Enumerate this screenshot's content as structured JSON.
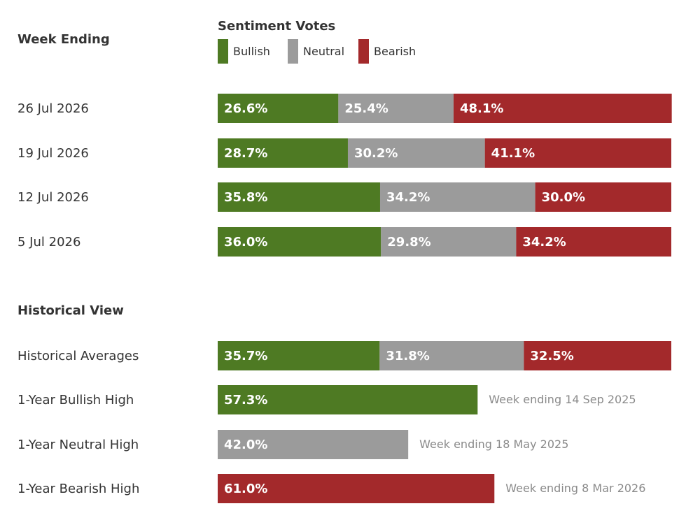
{
  "chart_data": {
    "type": "bar",
    "orientation": "horizontal",
    "stacked": true,
    "xlim": [
      0,
      100
    ],
    "unit": "%",
    "headers": {
      "left": "Week Ending",
      "legend_title": "Sentiment Votes",
      "historical": "Historical View"
    },
    "series": [
      {
        "name": "Bullish",
        "color": "#4e7a23"
      },
      {
        "name": "Neutral",
        "color": "#9b9b9b"
      },
      {
        "name": "Bearish",
        "color": "#a3292b"
      }
    ],
    "weekly": [
      {
        "label": "26 Jul 2026",
        "values": [
          26.6,
          25.4,
          48.1
        ]
      },
      {
        "label": "19 Jul 2026",
        "values": [
          28.7,
          30.2,
          41.1
        ]
      },
      {
        "label": "12 Jul 2026",
        "values": [
          35.8,
          34.2,
          30.0
        ]
      },
      {
        "label": "5 Jul 2026",
        "values": [
          36.0,
          29.8,
          34.2
        ]
      }
    ],
    "historical_averages": {
      "label": "Historical Averages",
      "values": [
        35.7,
        31.8,
        32.5
      ]
    },
    "highs": [
      {
        "label": "1-Year Bullish High",
        "series": "Bullish",
        "value": 57.3,
        "note": "Week ending 14 Sep 2025"
      },
      {
        "label": "1-Year Neutral High",
        "series": "Neutral",
        "value": 42.0,
        "note": "Week ending 18 May 2025"
      },
      {
        "label": "1-Year Bearish High",
        "series": "Bearish",
        "value": 61.0,
        "note": "Week ending 8 Mar 2026"
      }
    ]
  }
}
